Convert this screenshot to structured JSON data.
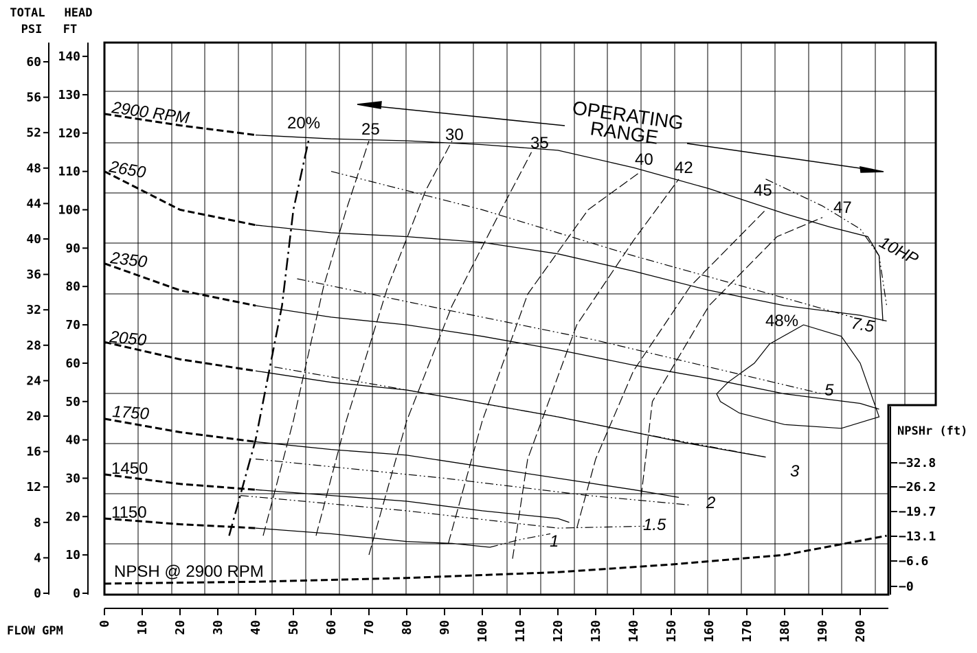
{
  "axis_titles": {
    "psi_line1": "TOTAL",
    "psi_line2": "PSI",
    "head_line1": "HEAD",
    "head_line2": "FT",
    "flow": "FLOW  GPM",
    "npshr": "NPSHr (ft)"
  },
  "chart_data": {
    "type": "line",
    "x_axis": {
      "label": "FLOW GPM",
      "ticks": [
        0,
        10,
        20,
        30,
        40,
        50,
        60,
        70,
        80,
        90,
        100,
        110,
        120,
        130,
        140,
        150,
        160,
        170,
        180,
        190,
        200
      ],
      "range": [
        0,
        207
      ]
    },
    "y_axis_head": {
      "label": "HEAD FT",
      "ticks": [
        0,
        10,
        20,
        30,
        40,
        50,
        60,
        70,
        80,
        90,
        100,
        110,
        120,
        130,
        140
      ],
      "range": [
        0,
        145
      ]
    },
    "y_axis_psi": {
      "label": "TOTAL PSI",
      "ticks": [
        0,
        4,
        8,
        12,
        16,
        20,
        24,
        28,
        32,
        36,
        40,
        44,
        48,
        52,
        56,
        60
      ]
    },
    "y_axis_npshr": {
      "label": "NPSHr (ft)",
      "ticks": [
        0,
        6.6,
        13.1,
        19.7,
        26.2,
        32.8
      ]
    },
    "speed_curves": [
      {
        "name": "2900 RPM",
        "points": [
          [
            0,
            125
          ],
          [
            20,
            122
          ],
          [
            40,
            119.5
          ],
          [
            60,
            118.5
          ],
          [
            80,
            118
          ],
          [
            100,
            117
          ],
          [
            120,
            115.5
          ],
          [
            140,
            111
          ],
          [
            160,
            105.5
          ],
          [
            180,
            99
          ],
          [
            192,
            95.5
          ],
          [
            202,
            93
          ],
          [
            205,
            88
          ],
          [
            206,
            71
          ]
        ]
      },
      {
        "name": "2650",
        "points": [
          [
            0,
            110
          ],
          [
            20,
            100
          ],
          [
            40,
            96
          ],
          [
            60,
            94
          ],
          [
            80,
            93
          ],
          [
            100,
            91.5
          ],
          [
            120,
            88.5
          ],
          [
            140,
            84
          ],
          [
            160,
            79
          ],
          [
            180,
            75
          ],
          [
            200,
            72.5
          ],
          [
            207,
            71
          ]
        ]
      },
      {
        "name": "2350",
        "points": [
          [
            0,
            86
          ],
          [
            20,
            79
          ],
          [
            40,
            75
          ],
          [
            60,
            72
          ],
          [
            80,
            70
          ],
          [
            100,
            67
          ],
          [
            120,
            63.5
          ],
          [
            140,
            59.5
          ],
          [
            160,
            56
          ],
          [
            180,
            52
          ],
          [
            200,
            49.5
          ],
          [
            205,
            48
          ]
        ]
      },
      {
        "name": "2050",
        "points": [
          [
            0,
            65.5
          ],
          [
            20,
            61
          ],
          [
            40,
            58
          ],
          [
            60,
            55
          ],
          [
            80,
            53
          ],
          [
            100,
            49.5
          ],
          [
            120,
            46
          ],
          [
            140,
            42
          ],
          [
            155,
            39
          ],
          [
            175,
            35.5
          ]
        ]
      },
      {
        "name": "1750",
        "points": [
          [
            0,
            45.5
          ],
          [
            20,
            42
          ],
          [
            40,
            39.5
          ],
          [
            60,
            37.5
          ],
          [
            80,
            36
          ],
          [
            100,
            33
          ],
          [
            120,
            30
          ],
          [
            140,
            27
          ],
          [
            152,
            25
          ]
        ]
      },
      {
        "name": "1450",
        "points": [
          [
            0,
            31
          ],
          [
            20,
            28.5
          ],
          [
            40,
            27
          ],
          [
            60,
            25.5
          ],
          [
            80,
            24
          ],
          [
            100,
            21.5
          ],
          [
            120,
            19.5
          ],
          [
            123,
            18.5
          ]
        ]
      },
      {
        "name": "1150",
        "points": [
          [
            0,
            19.5
          ],
          [
            20,
            18
          ],
          [
            40,
            17
          ],
          [
            60,
            15.5
          ],
          [
            80,
            13.5
          ],
          [
            92,
            13
          ],
          [
            102,
            12
          ]
        ]
      }
    ],
    "efficiency_lines": [
      {
        "name": "20%",
        "points": [
          [
            33,
            15
          ],
          [
            40,
            40
          ],
          [
            47,
            75
          ],
          [
            50,
            100
          ],
          [
            54,
            118
          ]
        ]
      },
      {
        "name": "25",
        "points": [
          [
            42,
            15
          ],
          [
            50,
            45
          ],
          [
            58,
            80
          ],
          [
            64,
            100
          ],
          [
            70,
            118
          ]
        ]
      },
      {
        "name": "30",
        "points": [
          [
            56,
            15
          ],
          [
            64,
            45
          ],
          [
            75,
            80
          ],
          [
            85,
            105
          ],
          [
            92,
            118
          ]
        ]
      },
      {
        "name": "35",
        "points": [
          [
            70,
            10
          ],
          [
            80,
            45
          ],
          [
            92,
            75
          ],
          [
            105,
            100
          ],
          [
            113,
            115
          ]
        ]
      },
      {
        "name": "40",
        "points": [
          [
            91,
            13
          ],
          [
            100,
            45
          ],
          [
            112,
            78
          ],
          [
            128,
            100
          ],
          [
            142,
            110
          ]
        ]
      },
      {
        "name": "42",
        "points": [
          [
            108,
            9
          ],
          [
            112,
            35
          ],
          [
            125,
            70
          ],
          [
            140,
            92
          ],
          [
            152,
            108
          ]
        ]
      },
      {
        "name": "45",
        "points": [
          [
            125,
            17
          ],
          [
            130,
            35
          ],
          [
            140,
            58
          ],
          [
            155,
            80
          ],
          [
            175,
            100
          ]
        ]
      },
      {
        "name": "47",
        "points": [
          [
            142,
            25
          ],
          [
            145,
            50
          ],
          [
            160,
            75
          ],
          [
            178,
            93
          ],
          [
            190,
            98
          ]
        ]
      }
    ],
    "hp_lines": [
      {
        "name": "1",
        "points": [
          [
            102,
            12
          ],
          [
            110,
            14
          ],
          [
            118,
            15.5
          ]
        ]
      },
      {
        "name": "1.5",
        "points": [
          [
            36,
            25.5
          ],
          [
            80,
            21.5
          ],
          [
            120,
            17
          ],
          [
            143,
            17.5
          ]
        ]
      },
      {
        "name": "2",
        "points": [
          [
            40,
            35
          ],
          [
            90,
            30
          ],
          [
            128,
            25.5
          ],
          [
            155,
            23
          ]
        ]
      },
      {
        "name": "3",
        "points": [
          [
            45,
            59
          ],
          [
            80,
            53
          ],
          [
            120,
            46
          ],
          [
            140,
            42
          ],
          [
            175,
            35.5
          ]
        ]
      },
      {
        "name": "5",
        "points": [
          [
            51,
            82
          ],
          [
            90,
            74
          ],
          [
            130,
            66
          ],
          [
            190,
            52
          ]
        ]
      },
      {
        "name": "7.5",
        "points": [
          [
            60,
            110
          ],
          [
            100,
            100
          ],
          [
            140,
            88
          ],
          [
            180,
            77
          ],
          [
            198,
            72
          ]
        ]
      },
      {
        "name": "10HP",
        "points": [
          [
            175,
            108
          ],
          [
            190,
            101
          ],
          [
            200,
            95
          ],
          [
            205,
            88
          ],
          [
            207,
            75
          ]
        ]
      }
    ],
    "npsh_curve": {
      "name": "NPSH @ 2900 RPM",
      "points": [
        [
          0,
          2.5
        ],
        [
          40,
          3
        ],
        [
          80,
          4
        ],
        [
          120,
          5.5
        ],
        [
          150,
          7.5
        ],
        [
          180,
          10
        ],
        [
          207,
          15
        ]
      ]
    },
    "operating_range_label": [
      "OPERATING",
      "RANGE"
    ],
    "labels": {
      "rpm_2900": "2900 RPM",
      "rpm_2650": "2650",
      "rpm_2350": "2350",
      "rpm_2050": "2050",
      "rpm_1750": "1750",
      "rpm_1450": "1450",
      "rpm_1150": "1150",
      "eff_20": "20%",
      "eff_25": "25",
      "eff_30": "30",
      "eff_35": "35",
      "eff_40": "40",
      "eff_42": "42",
      "eff_45": "45",
      "eff_47": "47",
      "eff_48": "48%",
      "hp_1": "1",
      "hp_15": "1.5",
      "hp_2": "2",
      "hp_3": "3",
      "hp_5": "5",
      "hp_75": "7.5",
      "hp_10": "10HP",
      "npsh": "NPSH @ 2900 RPM"
    }
  }
}
